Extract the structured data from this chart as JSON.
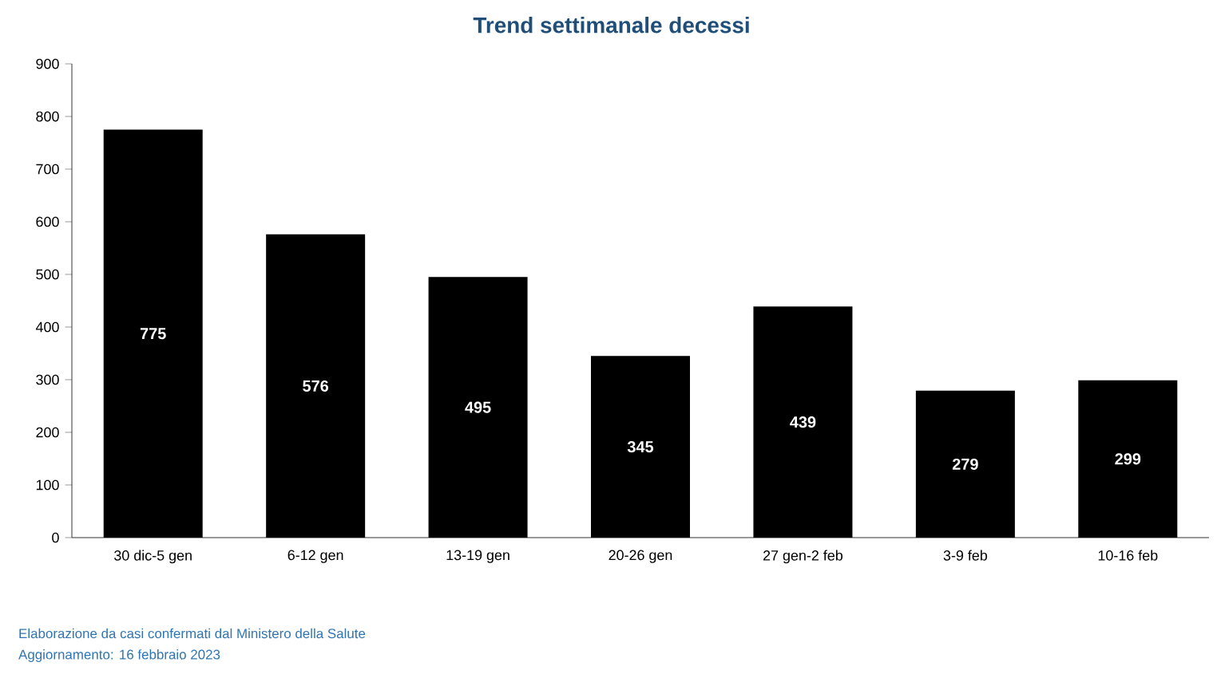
{
  "chart_data": {
    "type": "bar",
    "title": "Trend settimanale decessi",
    "categories": [
      "30 dic-5 gen",
      "6-12 gen",
      "13-19 gen",
      "20-26 gen",
      "27 gen-2 feb",
      "3-9 feb",
      "10-16 feb"
    ],
    "values": [
      775,
      576,
      495,
      345,
      439,
      279,
      299
    ],
    "color": "#000000",
    "data_labels": true,
    "ylim": [
      0,
      900
    ],
    "yticks": [
      0,
      100,
      200,
      300,
      400,
      500,
      600,
      700,
      800,
      900
    ],
    "grid": false,
    "annotations": [
      "Elaborazione da casi confermati dal Ministero della Salute",
      "Aggiornamento: 16 febbraio 2023"
    ]
  }
}
